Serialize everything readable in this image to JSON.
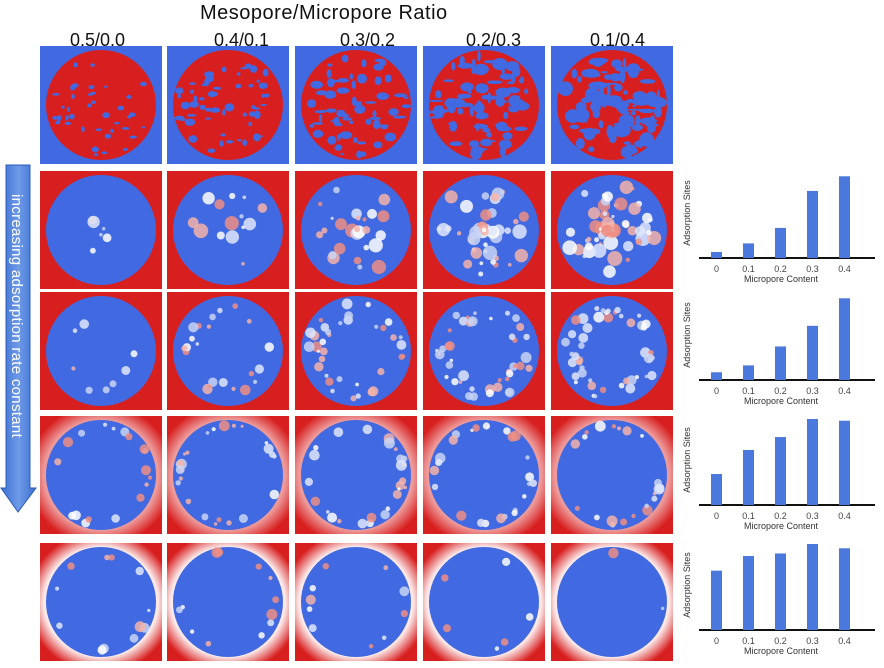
{
  "figure": {
    "title": "Mesopore/Micropore Ratio",
    "columns": [
      "0.5/0.0",
      "0.4/0.1",
      "0.3/0.2",
      "0.2/0.3",
      "0.1/0.4"
    ],
    "row_arrow_label": "increasing adsorption rate constant"
  },
  "colors": {
    "blue": "#4169e1",
    "red": "#d81f1f",
    "axis": "#111111"
  },
  "chart_data": [
    {
      "type": "bar",
      "xlabel": "Micropore Content",
      "ylabel": "Adsorption Sites",
      "categories": [
        "0",
        "0.1",
        "0.2",
        "0.3",
        "0.4"
      ],
      "values": [
        0.07,
        0.17,
        0.35,
        0.78,
        0.95
      ],
      "ylim": [
        0,
        1
      ]
    },
    {
      "type": "bar",
      "xlabel": "Micropore Content",
      "ylabel": "Adsorption Sites",
      "categories": [
        "0",
        "0.1",
        "0.2",
        "0.3",
        "0.4"
      ],
      "values": [
        0.09,
        0.17,
        0.39,
        0.63,
        0.95
      ],
      "ylim": [
        0,
        1
      ]
    },
    {
      "type": "bar",
      "xlabel": "Micropore Content",
      "ylabel": "Adsorption Sites",
      "categories": [
        "0",
        "0.1",
        "0.2",
        "0.3",
        "0.4"
      ],
      "values": [
        0.36,
        0.64,
        0.79,
        1.0,
        0.98
      ],
      "ylim": [
        0,
        1
      ]
    },
    {
      "type": "bar",
      "xlabel": "Micropore Content",
      "ylabel": "Adsorption Sites",
      "categories": [
        "0",
        "0.1",
        "0.2",
        "0.3",
        "0.4"
      ],
      "values": [
        0.69,
        0.86,
        0.89,
        1.0,
        0.95
      ],
      "ylim": [
        0,
        1
      ]
    }
  ]
}
